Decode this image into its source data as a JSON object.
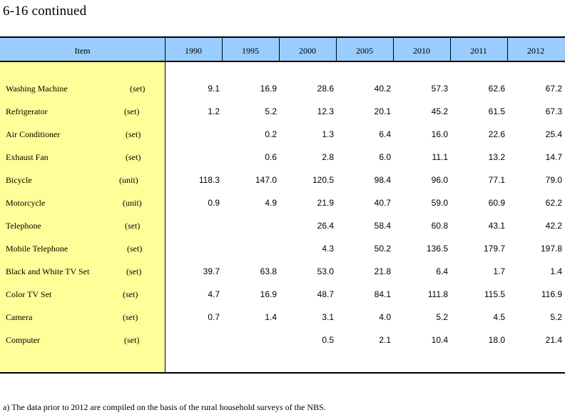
{
  "title": "6-16  continued",
  "header": {
    "item_label": "Item",
    "years": [
      "1990",
      "1995",
      "2000",
      "2005",
      "2010",
      "2011",
      "2012"
    ]
  },
  "rows": [
    {
      "label": "Washing Machine",
      "unit": "(set)",
      "values": [
        "9.1",
        "16.9",
        "28.6",
        "40.2",
        "57.3",
        "62.6",
        "67.2"
      ]
    },
    {
      "label": "Refrigerator",
      "unit": "(set)",
      "values": [
        "1.2",
        "5.2",
        "12.3",
        "20.1",
        "45.2",
        "61.5",
        "67.3"
      ]
    },
    {
      "label": "Air Conditioner",
      "unit": "(set)",
      "values": [
        "",
        "0.2",
        "1.3",
        "6.4",
        "16.0",
        "22.6",
        "25.4"
      ]
    },
    {
      "label": "Exhaust Fan",
      "unit": "(set)",
      "values": [
        "",
        "0.6",
        "2.8",
        "6.0",
        "11.1",
        "13.2",
        "14.7"
      ]
    },
    {
      "label": "Bicycle",
      "unit": "(unit)",
      "values": [
        "118.3",
        "147.0",
        "120.5",
        "98.4",
        "96.0",
        "77.1",
        "79.0"
      ]
    },
    {
      "label": "Motorcycle",
      "unit": "(unit)",
      "values": [
        "0.9",
        "4.9",
        "21.9",
        "40.7",
        "59.0",
        "60.9",
        "62.2"
      ]
    },
    {
      "label": "Telephone",
      "unit": "(set)",
      "values": [
        "",
        "",
        "26.4",
        "58.4",
        "60.8",
        "43.1",
        "42.2"
      ]
    },
    {
      "label": "Mobile Telephone",
      "unit": "(set)",
      "values": [
        "",
        "",
        "4.3",
        "50.2",
        "136.5",
        "179.7",
        "197.8"
      ]
    },
    {
      "label": "Black and White TV Set",
      "unit": "(set)",
      "values": [
        "39.7",
        "63.8",
        "53.0",
        "21.8",
        "6.4",
        "1.7",
        "1.4"
      ]
    },
    {
      "label": "Color TV Set",
      "unit": "(set)",
      "values": [
        "4.7",
        "16.9",
        "48.7",
        "84.1",
        "111.8",
        "115.5",
        "116.9"
      ]
    },
    {
      "label": "Camera",
      "unit": "(set)",
      "values": [
        "0.7",
        "1.4",
        "3.1",
        "4.0",
        "5.2",
        "4.5",
        "5.2"
      ]
    },
    {
      "label": "Computer",
      "unit": "(set)",
      "values": [
        "",
        "",
        "0.5",
        "2.1",
        "10.4",
        "18.0",
        "21.4"
      ]
    }
  ],
  "footnote": "a) The data prior to 2012 are compiled on the basis of the rural household surveys of the NBS.",
  "colors": {
    "header_bg": "#99ccff",
    "label_bg": "#ffff99"
  }
}
